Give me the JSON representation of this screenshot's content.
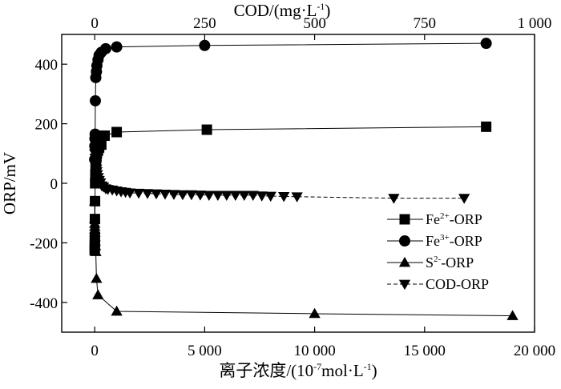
{
  "chart_data": {
    "type": "scatter",
    "title": "",
    "xlabel": "离子浓度/(10-7mol·L-1)",
    "xlabel_parts": {
      "main": "离子浓度/(10",
      "sup1": "-7",
      "mid": "mol·L",
      "sup2": "-1",
      "end": ")"
    },
    "x2label": "COD/(mg·L-1)",
    "x2label_parts": {
      "main": "COD/(mg·L",
      "sup": "-1",
      "end": ")"
    },
    "ylabel": "ORP/mV",
    "xlim": [
      -1500,
      20000
    ],
    "x2lim": [
      -75,
      1000
    ],
    "ylim": [
      -500,
      500
    ],
    "x_ticks": [
      0,
      5000,
      10000,
      15000,
      20000
    ],
    "x_tick_labels": [
      "0",
      "5 000",
      "10 000",
      "15 000",
      "20 000"
    ],
    "x2_ticks": [
      0,
      250,
      500,
      750,
      1000
    ],
    "x2_tick_labels": [
      "0",
      "250",
      "500",
      "750",
      "1 000"
    ],
    "y_ticks": [
      -400,
      -200,
      0,
      200,
      400
    ],
    "y_tick_labels": [
      "-400",
      "-200",
      "0",
      "200",
      "400"
    ],
    "grid": false,
    "legend_position": "lower-right",
    "series": [
      {
        "name": "Fe2+-ORP",
        "name_parts": {
          "base": "Fe",
          "sup": "2+",
          "rest": "-ORP"
        },
        "marker": "square",
        "axis": "bottom",
        "line": "solid",
        "x": [
          0,
          3,
          5,
          8,
          10,
          15,
          20,
          30,
          40,
          50,
          60,
          80,
          100,
          150,
          200,
          300,
          450,
          1000,
          5100,
          17800
        ],
        "y": [
          -225,
          -215,
          -200,
          -180,
          -120,
          -60,
          0,
          30,
          60,
          70,
          80,
          90,
          100,
          110,
          120,
          130,
          160,
          172,
          180,
          190
        ]
      },
      {
        "name": "Fe3+-ORP",
        "name_parts": {
          "base": "Fe",
          "sup": "3+",
          "rest": "-ORP"
        },
        "marker": "circle",
        "axis": "bottom",
        "line": "solid",
        "x": [
          0,
          5,
          10,
          20,
          30,
          50,
          80,
          100,
          150,
          200,
          300,
          500,
          1000,
          5000,
          17800
        ],
        "y": [
          80,
          125,
          150,
          165,
          277,
          355,
          375,
          395,
          415,
          430,
          440,
          452,
          458,
          463,
          470
        ]
      },
      {
        "name": "S2--ORP",
        "name_parts": {
          "base": "S",
          "sup": "2-",
          "rest": "-ORP"
        },
        "marker": "triangle-up",
        "axis": "bottom",
        "line": "solid",
        "x": [
          0,
          2,
          3,
          5,
          8,
          10,
          15,
          20,
          30,
          50,
          80,
          150,
          1000,
          10000,
          19000
        ],
        "y": [
          -60,
          -120,
          -135,
          -145,
          -155,
          -165,
          -180,
          -195,
          -210,
          -230,
          -320,
          -375,
          -430,
          -438,
          -445
        ]
      },
      {
        "name": "COD-ORP",
        "name_parts": {
          "base": "COD-ORP",
          "sup": "",
          "rest": ""
        },
        "marker": "triangle-down",
        "axis": "top",
        "line": "dashed",
        "x": [
          0,
          1,
          2,
          3,
          4,
          5,
          6,
          8,
          10,
          13,
          16,
          20,
          25,
          30,
          40,
          50,
          60,
          70,
          80,
          100,
          120,
          140,
          160,
          180,
          200,
          220,
          240,
          260,
          280,
          300,
          320,
          340,
          360,
          380,
          400,
          430,
          460,
          680,
          840
        ],
        "y": [
          100,
          85,
          70,
          58,
          48,
          40,
          30,
          20,
          10,
          2,
          -8,
          -12,
          -18,
          -20,
          -22,
          -25,
          -28,
          -30,
          -32,
          -33,
          -34,
          -35,
          -36,
          -37,
          -38,
          -38,
          -39,
          -40,
          -40,
          -40,
          -40,
          -40,
          -40,
          -42,
          -43,
          -44,
          -45,
          -50,
          -50
        ]
      }
    ]
  }
}
